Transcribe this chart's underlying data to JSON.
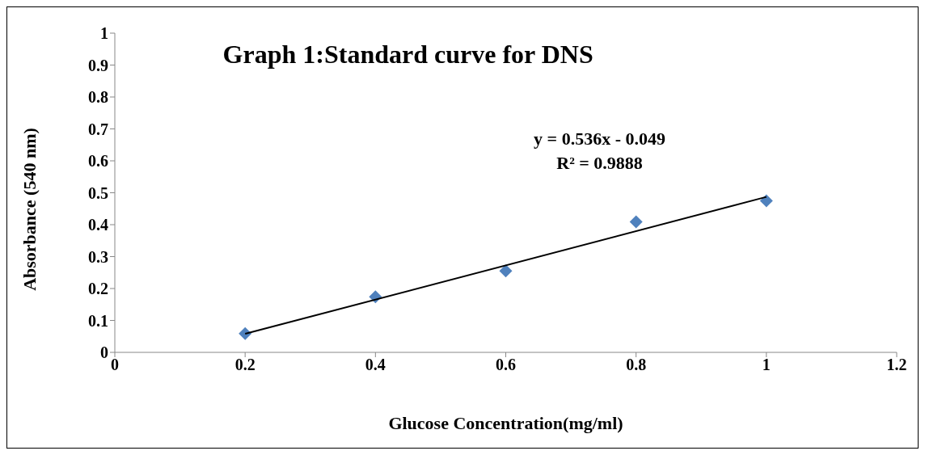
{
  "chart_data": {
    "type": "scatter",
    "title": "Graph 1:Standard  curve for DNS",
    "xlabel": "Glucose Concentration(mg/ml)",
    "ylabel": "Absorbance (540 nm)",
    "annotations": [
      "y = 0.536x - 0.049",
      "R² = 0.9888"
    ],
    "series": [
      {
        "marker": "diamond",
        "color": "#4f81bd",
        "x": [
          0.2,
          0.4,
          0.6,
          0.8,
          1.0
        ],
        "values": [
          0.059,
          0.174,
          0.255,
          0.409,
          0.475
        ]
      },
      {
        "type": "line",
        "marker": "none",
        "color": "#000000",
        "x": [
          0.2,
          1.0
        ],
        "values": [
          0.058,
          0.487
        ]
      }
    ],
    "xlim": [
      0,
      1.2
    ],
    "xticks": [
      0,
      0.2,
      0.4,
      0.6,
      0.8,
      1,
      1.2
    ],
    "ylim": [
      0,
      1
    ],
    "yticks": [
      0,
      0.1,
      0.2,
      0.3,
      0.4,
      0.5,
      0.6,
      0.7,
      0.8,
      0.9,
      1
    ],
    "grid": false,
    "legend": false,
    "line_style": "solid"
  }
}
